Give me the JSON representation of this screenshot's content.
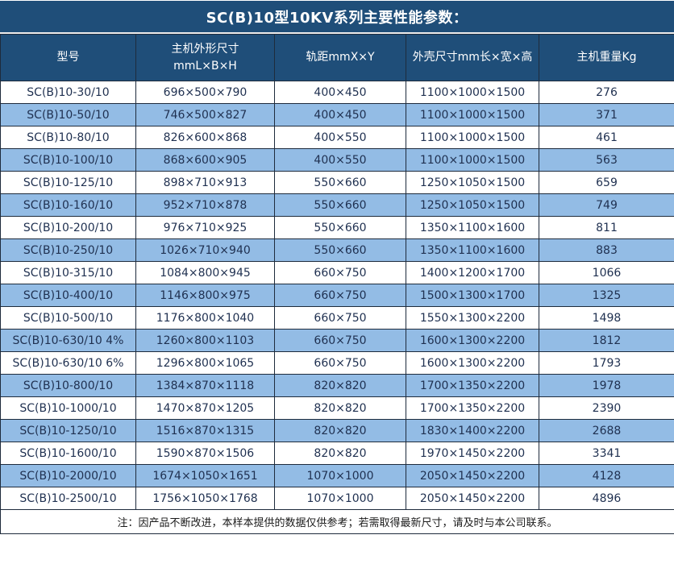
{
  "title": "SC(B)10型10KV系列主要性能参数：",
  "colors": {
    "header_bg": "#1F4E79",
    "stripe_blue": "#93BCE5",
    "grid_border": "#1E2B3C",
    "body_text": "#1F3050",
    "header_text": "#FFFFFF",
    "note_text": "#1A1A1A",
    "page_bg": "#FFFFFF"
  },
  "table": {
    "columns": [
      {
        "key": "model",
        "label": "型号"
      },
      {
        "key": "machine_size",
        "label": "主机外形尺寸\nmmL×B×H"
      },
      {
        "key": "rail_gauge",
        "label": "轨距mmX×Y"
      },
      {
        "key": "shell_size",
        "label": "外壳尺寸mm长×宽×高"
      },
      {
        "key": "weight",
        "label": "主机重量Kg"
      }
    ],
    "rows": [
      [
        "SC(B)10-30/10",
        "696×500×790",
        "400×450",
        "1100×1000×1500",
        "276"
      ],
      [
        "SC(B)10-50/10",
        "746×500×827",
        "400×450",
        "1100×1000×1500",
        "371"
      ],
      [
        "SC(B)10-80/10",
        "826×600×868",
        "400×550",
        "1100×1000×1500",
        "461"
      ],
      [
        "SC(B)10-100/10",
        "868×600×905",
        "400×550",
        "1100×1000×1500",
        "563"
      ],
      [
        "SC(B)10-125/10",
        "898×710×913",
        "550×660",
        "1250×1050×1500",
        "659"
      ],
      [
        "SC(B)10-160/10",
        "952×710×878",
        "550×660",
        "1250×1050×1500",
        "749"
      ],
      [
        "SC(B)10-200/10",
        "976×710×925",
        "550×660",
        "1350×1100×1600",
        "811"
      ],
      [
        "SC(B)10-250/10",
        "1026×710×940",
        "550×660",
        "1350×1100×1600",
        "883"
      ],
      [
        "SC(B)10-315/10",
        "1084×800×945",
        "660×750",
        "1400×1200×1700",
        "1066"
      ],
      [
        "SC(B)10-400/10",
        "1146×800×975",
        "660×750",
        "1500×1300×1700",
        "1325"
      ],
      [
        "SC(B)10-500/10",
        "1176×800×1040",
        "660×750",
        "1550×1300×2200",
        "1498"
      ],
      [
        "SC(B)10-630/10 4%",
        "1260×800×1103",
        "660×750",
        "1600×1300×2200",
        "1812"
      ],
      [
        "SC(B)10-630/10 6%",
        "1296×800×1065",
        "660×750",
        "1600×1300×2200",
        "1793"
      ],
      [
        "SC(B)10-800/10",
        "1384×870×1118",
        "820×820",
        "1700×1350×2200",
        "1978"
      ],
      [
        "SC(B)10-1000/10",
        "1470×870×1205",
        "820×820",
        "1700×1350×2200",
        "2390"
      ],
      [
        "SC(B)10-1250/10",
        "1516×870×1315",
        "820×820",
        "1830×1400×2200",
        "2688"
      ],
      [
        "SC(B)10-1600/10",
        "1590×870×1506",
        "820×820",
        "1970×1450×2200",
        "3341"
      ],
      [
        "SC(B)10-2000/10",
        "1674×1050×1651",
        "1070×1000",
        "2050×1450×2200",
        "4128"
      ],
      [
        "SC(B)10-2500/10",
        "1756×1050×1768",
        "1070×1000",
        "2050×1450×2200",
        "4896"
      ]
    ],
    "note": "注：因产品不断改进，本样本提供的数据仅供参考；若需取得最新尺寸，请及时与本公司联系。"
  }
}
